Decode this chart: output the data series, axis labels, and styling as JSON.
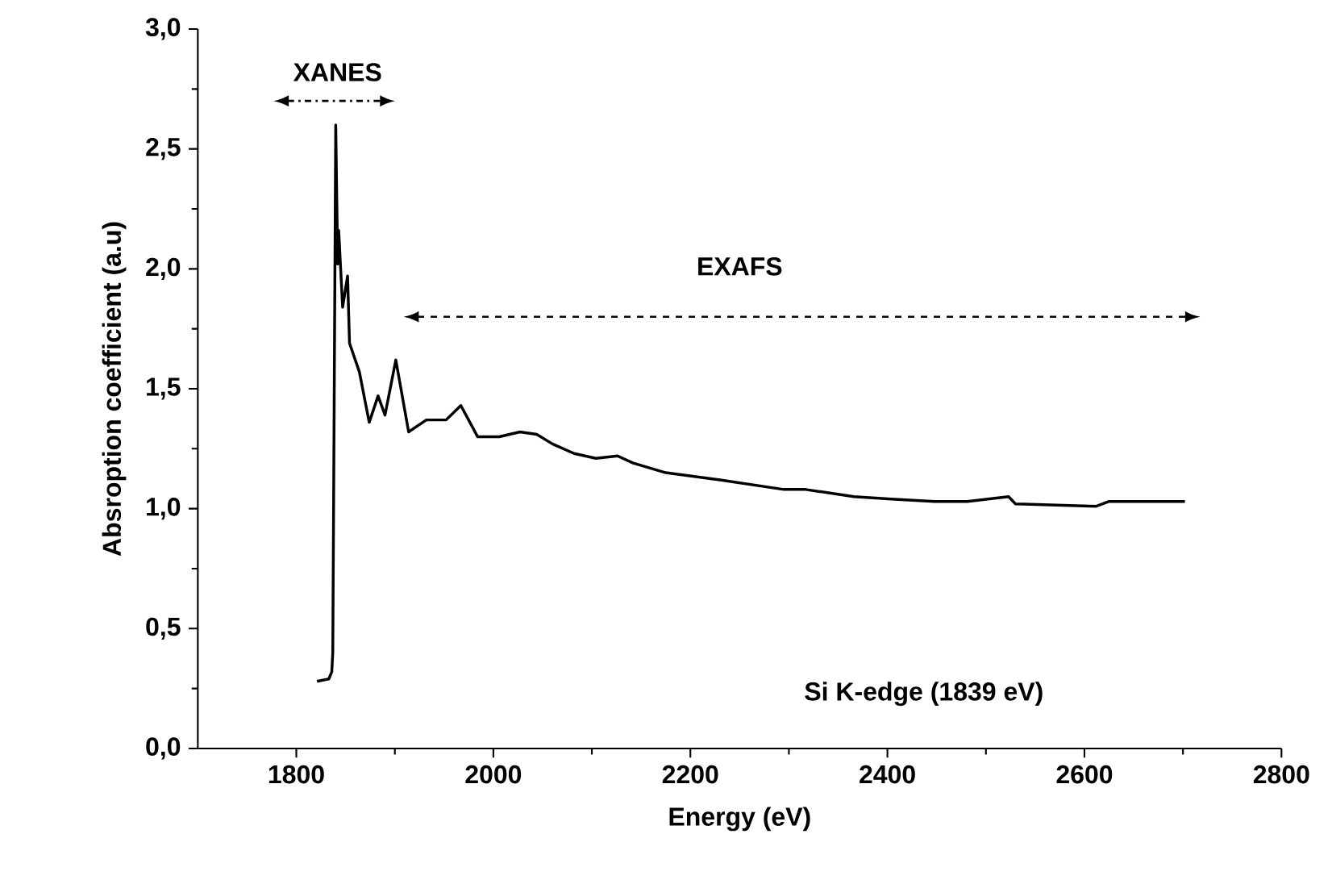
{
  "chart_data": {
    "type": "line",
    "xlabel": "Energy (eV)",
    "ylabel": "Absroption coefficient (a.u)",
    "annotations": [
      "XANES",
      "EXAFS",
      "Si K-edge (1839 eV)"
    ],
    "series": [
      {
        "color": "#000000",
        "x": [
          1821,
          1833,
          1836,
          1837,
          1840,
          1842,
          1843,
          1847,
          1852,
          1854,
          1864,
          1874,
          1883,
          1890,
          1901,
          1914,
          1932,
          1952,
          1967,
          1984,
          2006,
          2027,
          2044,
          2060,
          2082,
          2104,
          2126,
          2142,
          2175,
          2230,
          2295,
          2317,
          2366,
          2404,
          2448,
          2481,
          2523,
          2530,
          2612,
          2625,
          2702
        ],
        "values": [
          0.28,
          0.29,
          0.32,
          0.4,
          2.6,
          2.02,
          2.16,
          1.84,
          1.97,
          1.69,
          1.57,
          1.36,
          1.47,
          1.39,
          1.62,
          1.32,
          1.37,
          1.37,
          1.43,
          1.3,
          1.3,
          1.32,
          1.31,
          1.27,
          1.23,
          1.21,
          1.22,
          1.19,
          1.15,
          1.12,
          1.08,
          1.08,
          1.05,
          1.04,
          1.03,
          1.03,
          1.05,
          1.02,
          1.01,
          1.03,
          1.03
        ]
      }
    ],
    "xlim": [
      1700,
      2800
    ],
    "xticks": [
      1800,
      2000,
      2200,
      2400,
      2600,
      2800
    ],
    "ylim": [
      0,
      3
    ],
    "yticks": [
      {
        "value": 0,
        "label": "0,0"
      },
      {
        "value": 0.5,
        "label": "0,5"
      },
      {
        "value": 1,
        "label": "1,0"
      },
      {
        "value": 1.5,
        "label": "1,5"
      },
      {
        "value": 2,
        "label": "2,0"
      },
      {
        "value": 2.5,
        "label": "2,5"
      },
      {
        "value": 3,
        "label": "3,0"
      }
    ],
    "grid": false,
    "marker": "none",
    "line_style": "solid"
  }
}
